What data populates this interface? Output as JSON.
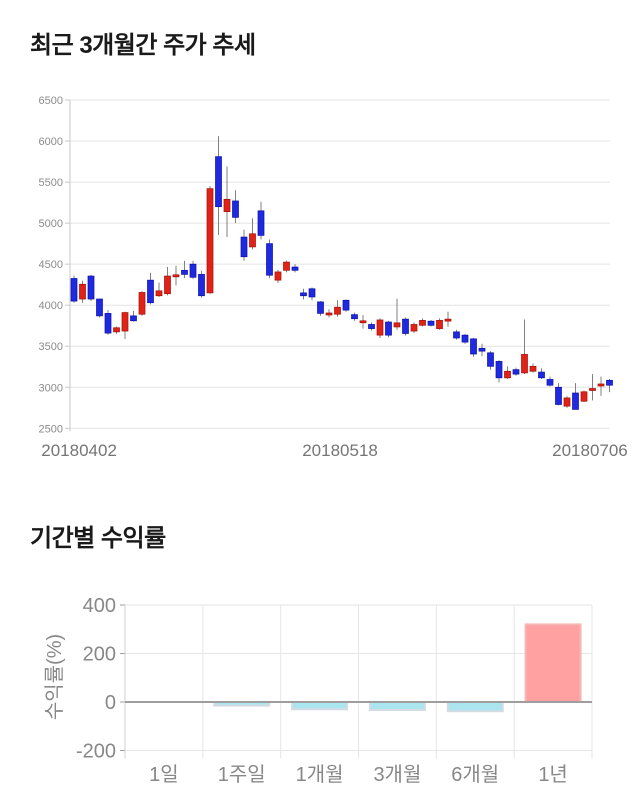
{
  "page": {
    "background": "#ffffff"
  },
  "chart_data": [
    {
      "type": "candlestick",
      "title": "최근 3개월간 주가 추세",
      "ylim": [
        2500,
        6500
      ],
      "y_ticks": [
        6500,
        6000,
        5500,
        5000,
        4500,
        4000,
        3500,
        3000,
        2500
      ],
      "x_ticks": [
        {
          "label": "20180402",
          "at_candle": 0.6
        },
        {
          "label": "20180518",
          "at_candle": 31.3
        },
        {
          "label": "20180706",
          "at_candle": 60.7
        }
      ],
      "grid": "horizontal",
      "colors": {
        "up": "#e02318",
        "up_border": "#a50e05",
        "down": "#1f2ae0",
        "down_border": "#0a10a8",
        "wick": "#808080",
        "gridline": "#e4e4e4",
        "axis": "#c9c9c9",
        "y_tick_text": "#8b8b8b",
        "x_tick_text": "#757575"
      },
      "candles_ohlc": [
        [
          4325,
          4360,
          4030,
          4050
        ],
        [
          4075,
          4300,
          4030,
          4255
        ],
        [
          4355,
          4370,
          4050,
          4075
        ],
        [
          4075,
          4080,
          3850,
          3870
        ],
        [
          3900,
          3940,
          3640,
          3660
        ],
        [
          3675,
          3740,
          3650,
          3725
        ],
        [
          3685,
          3920,
          3590,
          3910
        ],
        [
          3870,
          3930,
          3800,
          3810
        ],
        [
          3890,
          4170,
          3870,
          4155
        ],
        [
          4305,
          4395,
          4010,
          4030
        ],
        [
          4115,
          4275,
          4100,
          4175
        ],
        [
          4140,
          4465,
          4120,
          4355
        ],
        [
          4355,
          4480,
          4240,
          4370
        ],
        [
          4425,
          4540,
          4330,
          4375
        ],
        [
          4500,
          4540,
          4320,
          4340
        ],
        [
          4375,
          4420,
          4090,
          4115
        ],
        [
          4150,
          5450,
          4140,
          5420
        ],
        [
          5810,
          6060,
          4855,
          5200
        ],
        [
          5140,
          5690,
          4830,
          5290
        ],
        [
          5270,
          5400,
          5000,
          5070
        ],
        [
          4830,
          4920,
          4540,
          4590
        ],
        [
          4710,
          5060,
          4680,
          4870
        ],
        [
          5150,
          5260,
          4800,
          4850
        ],
        [
          4750,
          4800,
          4330,
          4365
        ],
        [
          4305,
          4430,
          4270,
          4405
        ],
        [
          4425,
          4545,
          4400,
          4525
        ],
        [
          4465,
          4500,
          4400,
          4425
        ],
        [
          4150,
          4200,
          4070,
          4115
        ],
        [
          4200,
          4215,
          4060,
          4100
        ],
        [
          4040,
          4050,
          3870,
          3900
        ],
        [
          3885,
          3950,
          3850,
          3905
        ],
        [
          3890,
          4060,
          3860,
          3975
        ],
        [
          4060,
          4070,
          3920,
          3940
        ],
        [
          3885,
          3910,
          3810,
          3835
        ],
        [
          3800,
          3880,
          3715,
          3810
        ],
        [
          3765,
          3790,
          3690,
          3715
        ],
        [
          3635,
          3840,
          3600,
          3820
        ],
        [
          3795,
          3810,
          3610,
          3635
        ],
        [
          3735,
          4080,
          3700,
          3785
        ],
        [
          3830,
          3850,
          3630,
          3655
        ],
        [
          3685,
          3790,
          3660,
          3765
        ],
        [
          3755,
          3840,
          3740,
          3815
        ],
        [
          3805,
          3820,
          3740,
          3755
        ],
        [
          3715,
          3840,
          3700,
          3815
        ],
        [
          3815,
          3920,
          3735,
          3830
        ],
        [
          3675,
          3700,
          3580,
          3600
        ],
        [
          3635,
          3650,
          3530,
          3550
        ],
        [
          3590,
          3600,
          3370,
          3405
        ],
        [
          3475,
          3530,
          3380,
          3440
        ],
        [
          3420,
          3440,
          3215,
          3255
        ],
        [
          3315,
          3330,
          3060,
          3115
        ],
        [
          3115,
          3255,
          3100,
          3195
        ],
        [
          3215,
          3240,
          3140,
          3160
        ],
        [
          3175,
          3825,
          3160,
          3400
        ],
        [
          3195,
          3290,
          3180,
          3255
        ],
        [
          3185,
          3230,
          3100,
          3115
        ],
        [
          3095,
          3130,
          3010,
          3025
        ],
        [
          3000,
          3050,
          2780,
          2790
        ],
        [
          2770,
          2890,
          2750,
          2870
        ],
        [
          2930,
          3050,
          2728,
          2730
        ],
        [
          2830,
          2960,
          2820,
          2945
        ],
        [
          2975,
          3160,
          2840,
          2985
        ],
        [
          3030,
          3130,
          2895,
          3040
        ],
        [
          3085,
          3100,
          2940,
          3025
        ]
      ]
    },
    {
      "type": "bar",
      "title": "기간별 수익률",
      "ylabel": "수익률(%)",
      "categories": [
        "1일",
        "1주일",
        "1개월",
        "3개월",
        "6개월",
        "1년"
      ],
      "values": [
        0,
        -15,
        -30,
        -33,
        -38,
        320
      ],
      "ylim": [
        -200,
        400
      ],
      "y_ticks": [
        400,
        200,
        0,
        -200
      ],
      "grid": "both",
      "colors": {
        "positive": "#ffa0a1",
        "positive_border": "#f6b6b6",
        "negative": "#abe5ef",
        "negative_border": "#d4dbe3",
        "zero_line": "#9e9e9e",
        "gridline": "#e6e6e6",
        "tick_text": "#888888"
      }
    }
  ]
}
